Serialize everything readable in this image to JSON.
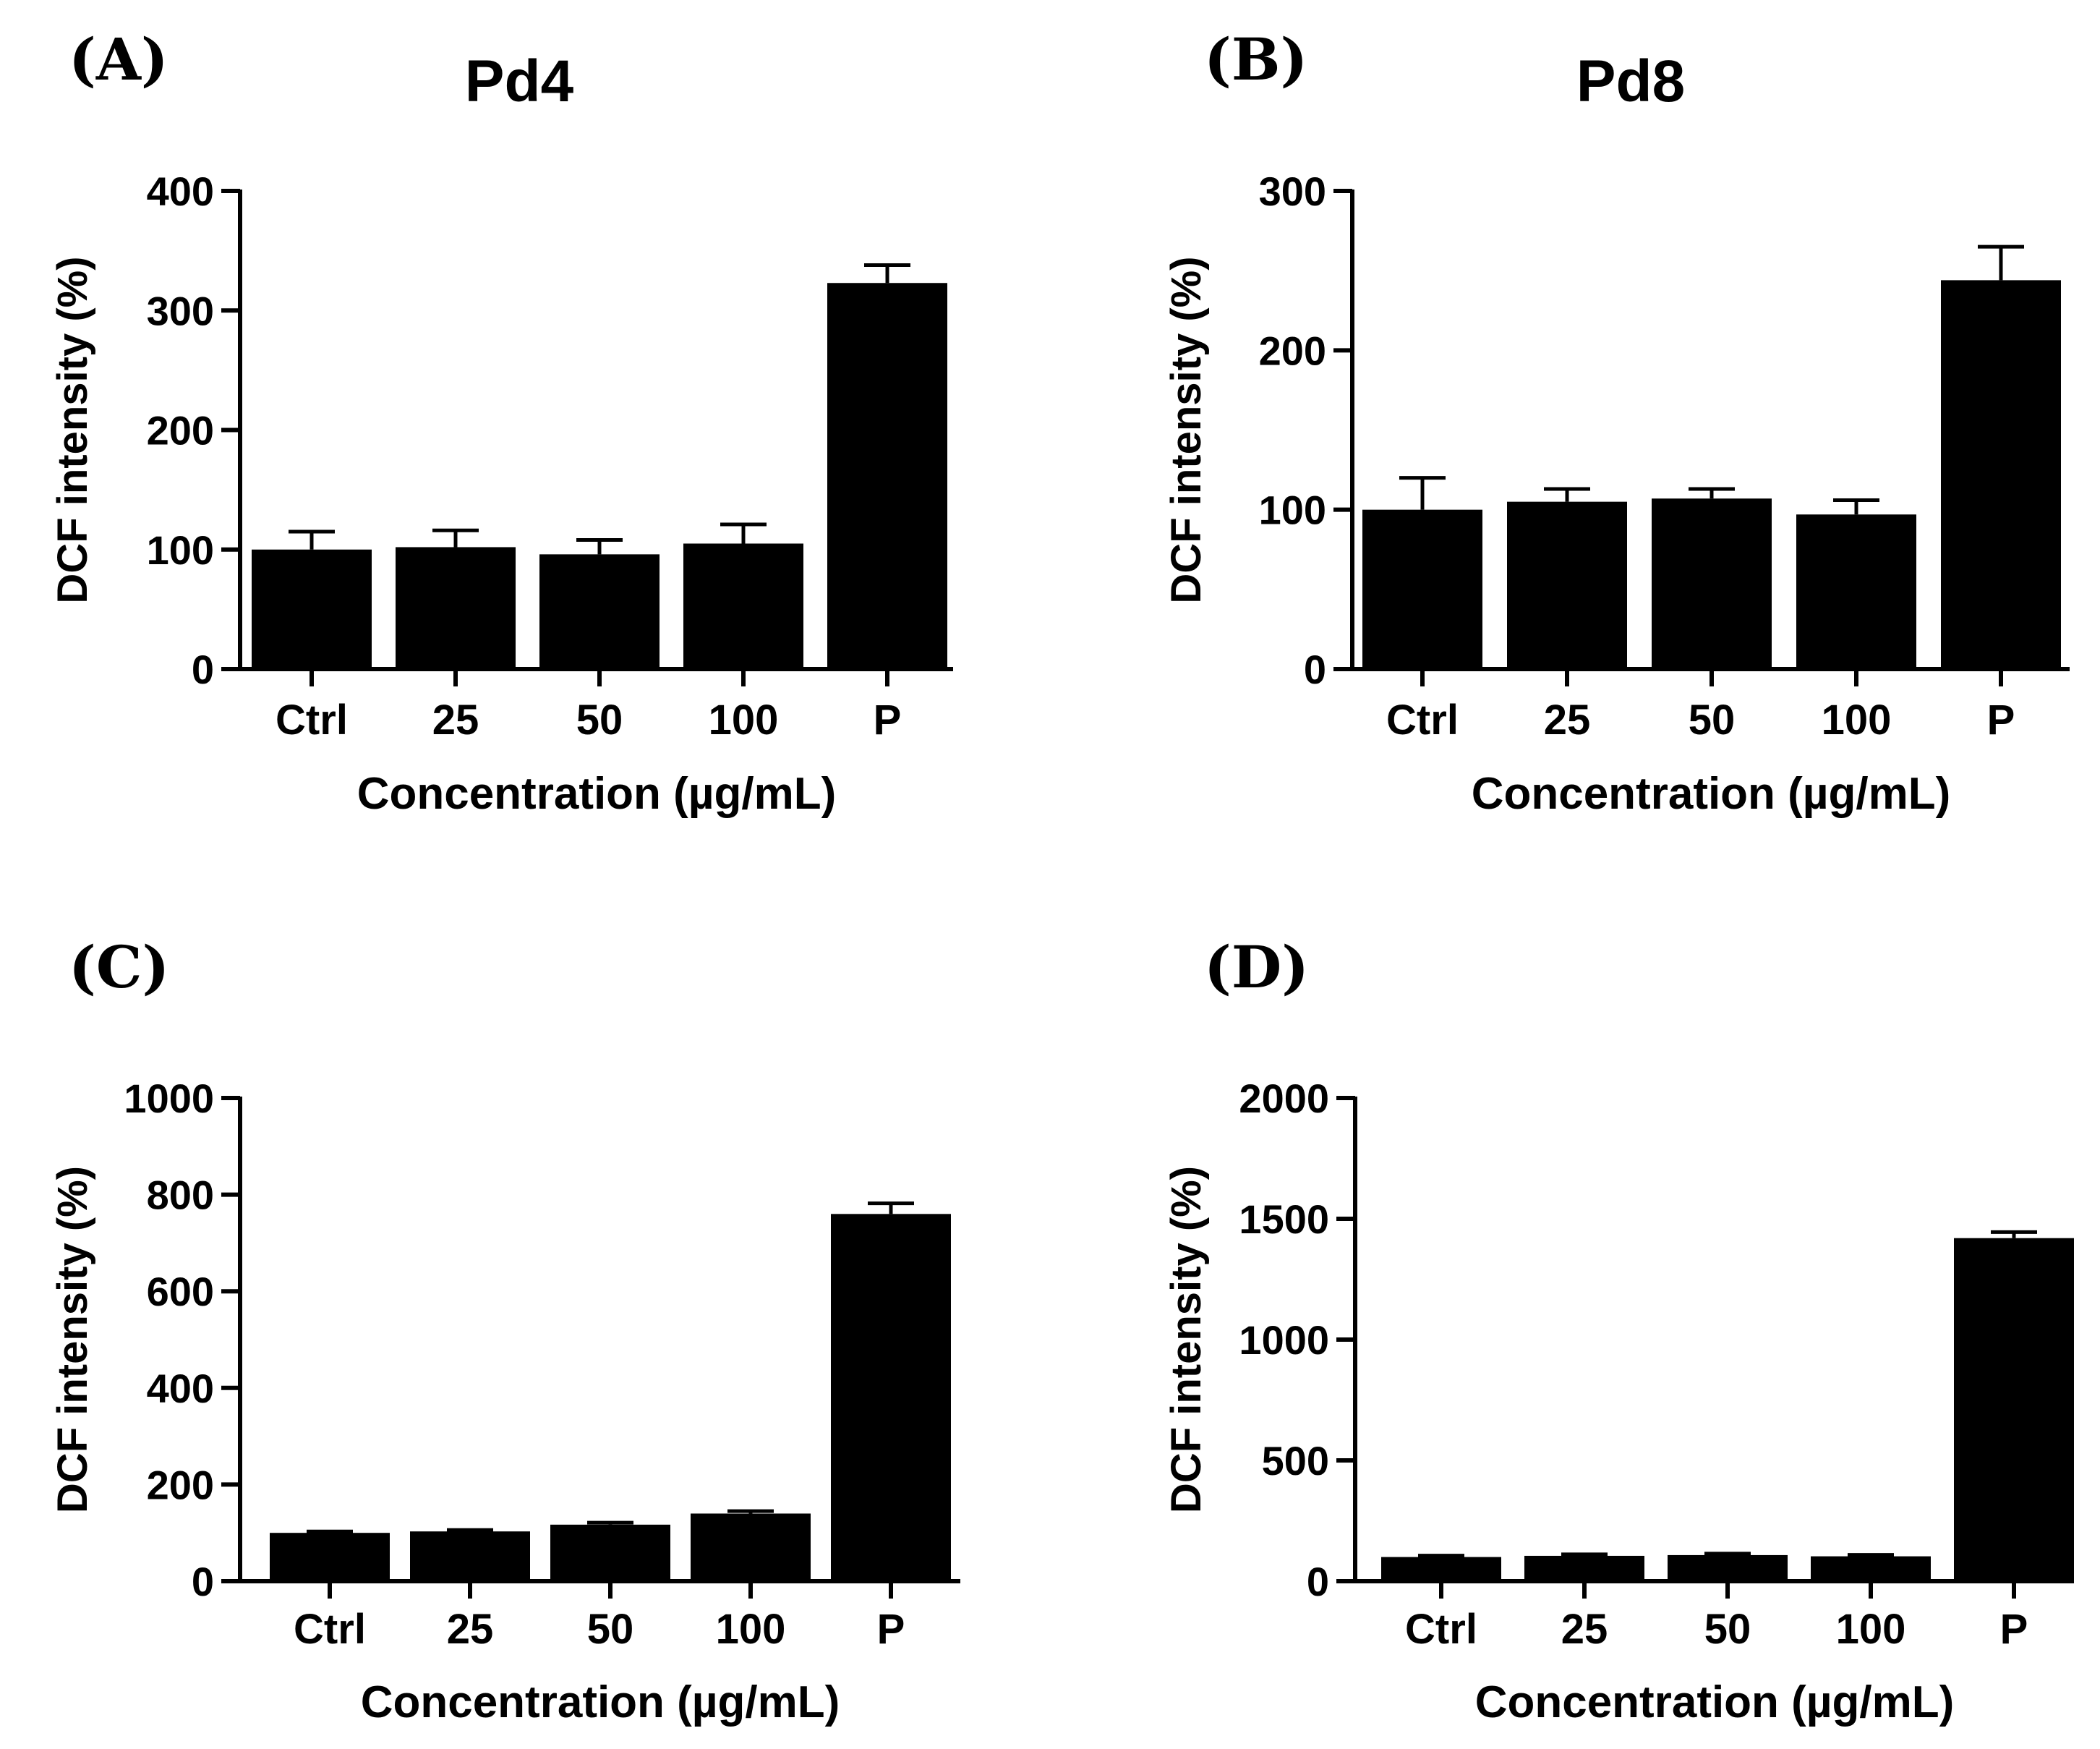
{
  "chart_data": [
    {
      "type": "bar",
      "panel_label": "(A)",
      "title": "Pd4",
      "categories": [
        "Ctrl",
        "25",
        "50",
        "100",
        "P"
      ],
      "series": [
        {
          "values": [
            100,
            102,
            96,
            105,
            323
          ],
          "errors": [
            15,
            14,
            12,
            16,
            15
          ]
        }
      ],
      "xlabel": "Concentration (µg/mL)",
      "ylabel": "DCF intensity (%)",
      "ylim": [
        0,
        400
      ],
      "yticks": [
        0,
        100,
        200,
        300,
        400
      ],
      "grid": false,
      "bar_color": "#000000"
    },
    {
      "type": "bar",
      "panel_label": "(B)",
      "title": "Pd8",
      "categories": [
        "Ctrl",
        "25",
        "50",
        "100",
        "P"
      ],
      "series": [
        {
          "values": [
            100,
            105,
            107,
            97,
            244
          ],
          "errors": [
            20,
            8,
            6,
            9,
            21
          ]
        }
      ],
      "xlabel": "Concentration (µg/mL)",
      "ylabel": "DCF intensity (%)",
      "ylim": [
        0,
        300
      ],
      "yticks": [
        0,
        100,
        200,
        300
      ],
      "grid": false,
      "bar_color": "#000000"
    },
    {
      "type": "bar",
      "panel_label": "(C)",
      "title": "",
      "categories": [
        "Ctrl",
        "25",
        "50",
        "100",
        "P"
      ],
      "series": [
        {
          "values": [
            100,
            103,
            117,
            140,
            760
          ],
          "errors": [
            3,
            3,
            4,
            5,
            22
          ]
        }
      ],
      "xlabel": "Concentration (µg/mL)",
      "ylabel": "DCF intensity (%)",
      "ylim": [
        0,
        1000
      ],
      "yticks": [
        0,
        200,
        400,
        600,
        800,
        1000
      ],
      "grid": false,
      "bar_color": "#000000"
    },
    {
      "type": "bar",
      "panel_label": "(D)",
      "title": "",
      "categories": [
        "Ctrl",
        "25",
        "50",
        "100",
        "P"
      ],
      "series": [
        {
          "values": [
            100,
            105,
            108,
            103,
            1420
          ],
          "errors": [
            6,
            6,
            6,
            6,
            25
          ]
        }
      ],
      "xlabel": "Concentration (µg/mL)",
      "ylabel": "DCF intensity (%)",
      "ylim": [
        0,
        2000
      ],
      "yticks": [
        0,
        500,
        1000,
        1500,
        2000
      ],
      "grid": false,
      "bar_color": "#000000"
    }
  ]
}
